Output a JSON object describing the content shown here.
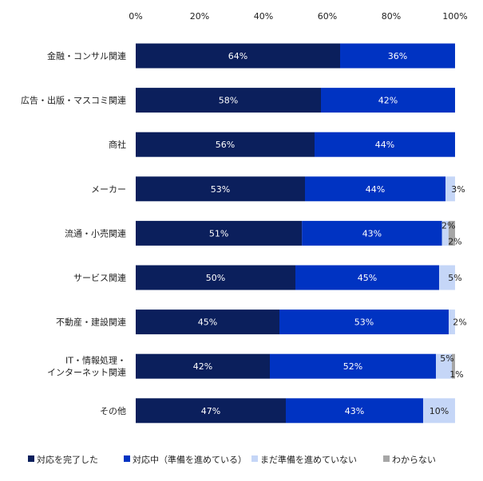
{
  "chart_data": {
    "type": "bar",
    "orientation": "horizontal",
    "stacked": true,
    "xlim": [
      0,
      100
    ],
    "xticks": [
      "0%",
      "20%",
      "40%",
      "60%",
      "80%",
      "100%"
    ],
    "categories": [
      "金融・コンサル関連",
      "広告・出版・マスコミ関連",
      "商社",
      "メーカー",
      "流通・小売関連",
      "サービス関連",
      "不動産・建設関連",
      "IT・情報処理・\nインターネット関連",
      "その他"
    ],
    "series": [
      {
        "name": "対応を完了した",
        "color": "#0b1f5c",
        "values": [
          64,
          58,
          56,
          53,
          51,
          50,
          45,
          42,
          47
        ]
      },
      {
        "name": "対応中（準備を進めている）",
        "color": "#0033c2",
        "values": [
          36,
          42,
          44,
          44,
          43,
          45,
          53,
          52,
          43
        ]
      },
      {
        "name": "まだ準備を進めていない",
        "color": "#c5d6f7",
        "values": [
          0,
          0,
          0,
          3,
          2,
          5,
          2,
          5,
          10
        ]
      },
      {
        "name": "わからない",
        "color": "#a6a6a6",
        "values": [
          0,
          0,
          0,
          0,
          2,
          0,
          0,
          1,
          0
        ]
      }
    ],
    "legend_position": "bottom"
  }
}
